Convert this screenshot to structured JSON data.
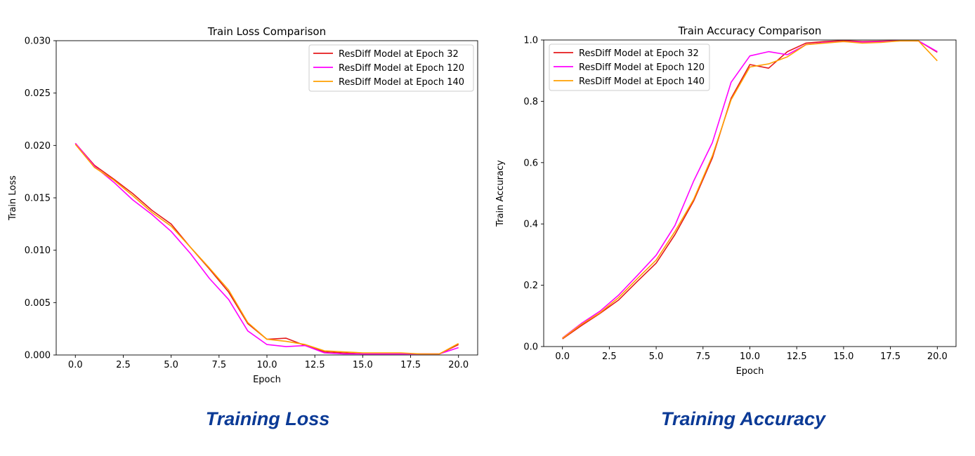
{
  "captions": {
    "left": "Training Loss",
    "right": "Training Accuracy"
  },
  "chart_data": [
    {
      "type": "line",
      "title": "Train Loss Comparison",
      "xlabel": "Epoch",
      "ylabel": "Train Loss",
      "xlim": [
        -1,
        21
      ],
      "ylim": [
        0,
        0.03
      ],
      "xticks": [
        "0.0",
        "2.5",
        "5.0",
        "7.5",
        "10.0",
        "12.5",
        "15.0",
        "17.5",
        "20.0"
      ],
      "yticks": [
        "0.000",
        "0.005",
        "0.010",
        "0.015",
        "0.020",
        "0.025",
        "0.030"
      ],
      "legend_position": "top-right",
      "grid": false,
      "x": [
        0,
        1,
        2,
        3,
        4,
        5,
        6,
        7,
        8,
        9,
        10,
        11,
        12,
        13,
        14,
        15,
        16,
        17,
        18,
        19,
        20
      ],
      "series": [
        {
          "name": "ResDiff Model at Epoch 32",
          "color": "#e41a1c",
          "values": [
            0.0202,
            0.0181,
            0.0168,
            0.0154,
            0.0138,
            0.0125,
            0.0103,
            0.0082,
            0.006,
            0.003,
            0.0015,
            0.0016,
            0.0009,
            0.0003,
            0.0002,
            0.0001,
            0.0001,
            0.0001,
            0.0001,
            0.0001,
            0.001
          ]
        },
        {
          "name": "ResDiff Model at Epoch 120",
          "color": "#ff00ff",
          "values": [
            0.0202,
            0.018,
            0.0165,
            0.0148,
            0.0134,
            0.0118,
            0.0097,
            0.0073,
            0.0053,
            0.0023,
            0.001,
            0.0008,
            0.0009,
            0.0002,
            0.0001,
            0.0001,
            0.0001,
            0.0001,
            0.0001,
            0.0001,
            0.0007
          ]
        },
        {
          "name": "ResDiff Model at Epoch 140",
          "color": "#ffa000",
          "values": [
            0.0201,
            0.0179,
            0.0167,
            0.0152,
            0.0136,
            0.0123,
            0.0103,
            0.0083,
            0.0062,
            0.0031,
            0.0015,
            0.0013,
            0.001,
            0.0004,
            0.0003,
            0.0002,
            0.0002,
            0.0002,
            0.0001,
            0.0001,
            0.0011
          ]
        }
      ]
    },
    {
      "type": "line",
      "title": "Train Accuracy Comparison",
      "xlabel": "Epoch",
      "ylabel": "Train Accuracy",
      "xlim": [
        -1,
        21
      ],
      "ylim": [
        0,
        1.0
      ],
      "xticks": [
        "0.0",
        "2.5",
        "5.0",
        "7.5",
        "10.0",
        "12.5",
        "15.0",
        "17.5",
        "20.0"
      ],
      "yticks": [
        "0.0",
        "0.2",
        "0.4",
        "0.6",
        "0.8",
        "1.0"
      ],
      "legend_position": "top-left",
      "grid": false,
      "x": [
        0,
        1,
        2,
        3,
        4,
        5,
        6,
        7,
        8,
        9,
        10,
        11,
        12,
        13,
        14,
        15,
        16,
        17,
        18,
        19,
        20
      ],
      "series": [
        {
          "name": "ResDiff Model at Epoch 32",
          "color": "#e41a1c",
          "values": [
            0.025,
            0.068,
            0.108,
            0.152,
            0.213,
            0.272,
            0.365,
            0.475,
            0.615,
            0.81,
            0.92,
            0.908,
            0.962,
            0.99,
            0.995,
            0.998,
            0.995,
            0.996,
            0.998,
            0.997,
            0.96
          ]
        },
        {
          "name": "ResDiff Model at Epoch 120",
          "color": "#ff00ff",
          "values": [
            0.028,
            0.075,
            0.115,
            0.168,
            0.232,
            0.298,
            0.395,
            0.54,
            0.665,
            0.862,
            0.948,
            0.962,
            0.952,
            0.985,
            0.992,
            0.995,
            0.993,
            0.994,
            0.997,
            0.997,
            0.962
          ]
        },
        {
          "name": "ResDiff Model at Epoch 140",
          "color": "#ffa000",
          "values": [
            0.027,
            0.072,
            0.11,
            0.16,
            0.222,
            0.282,
            0.375,
            0.48,
            0.622,
            0.805,
            0.912,
            0.922,
            0.945,
            0.985,
            0.99,
            0.995,
            0.99,
            0.992,
            0.997,
            0.997,
            0.932
          ]
        }
      ]
    }
  ]
}
